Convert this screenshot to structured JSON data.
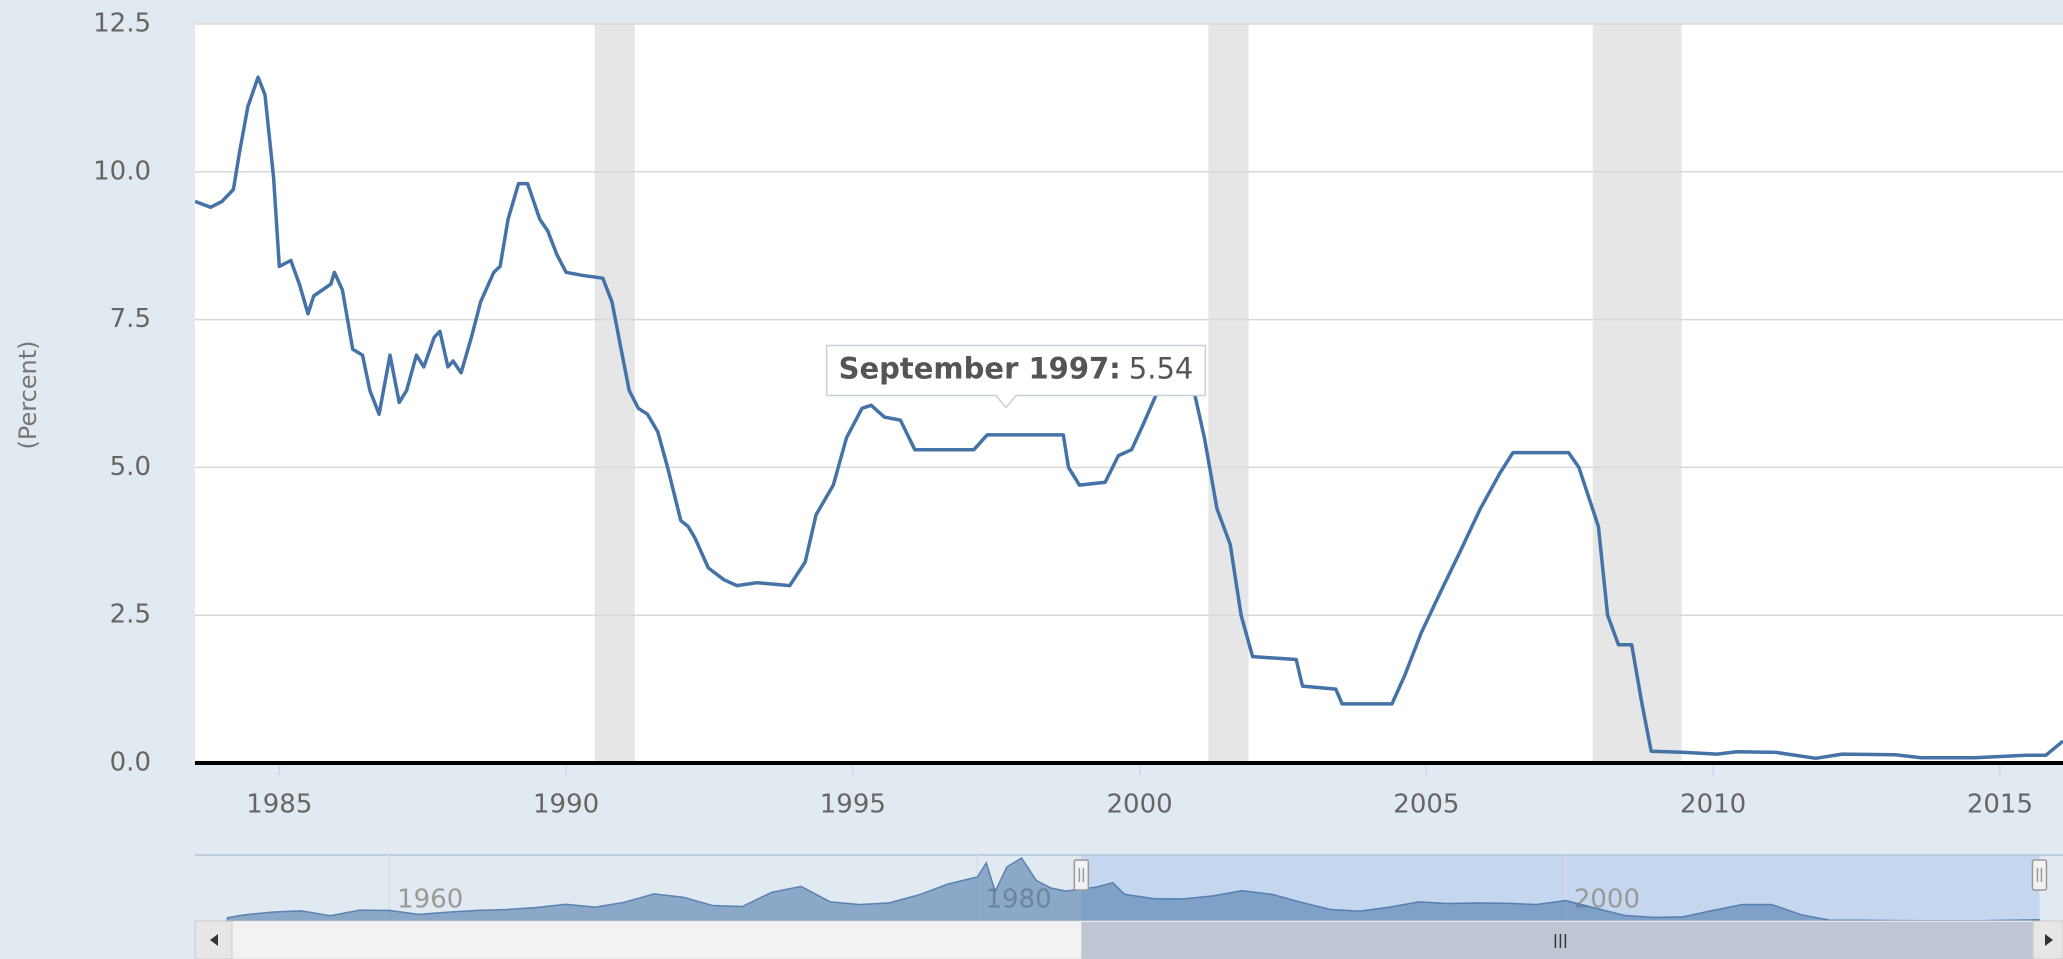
{
  "chart_data": {
    "type": "line",
    "y_axis_label": "(Percent)",
    "color": "#4572a7",
    "grid": true,
    "xlim": [
      1983.53,
      2016.1
    ],
    "ylim": [
      0,
      12.5
    ],
    "xticks": [
      1985,
      1990,
      1995,
      2000,
      2005,
      2010,
      2015
    ],
    "yticks": [
      {
        "value": 0,
        "label": "0.0"
      },
      {
        "value": 2.5,
        "label": "2.5"
      },
      {
        "value": 5,
        "label": "5.0"
      },
      {
        "value": 7.5,
        "label": "7.5"
      },
      {
        "value": 10,
        "label": "10.0"
      },
      {
        "value": 12.5,
        "label": "12.5"
      }
    ],
    "recessions": [
      [
        1990.5,
        1991.2
      ],
      [
        2001.2,
        2001.9
      ],
      [
        2007.9,
        2009.45
      ]
    ],
    "x": [
      1983.53,
      1983.8,
      1984.0,
      1984.2,
      1984.3,
      1984.45,
      1984.63,
      1984.75,
      1984.9,
      1985.0,
      1985.2,
      1985.35,
      1985.5,
      1985.6,
      1985.9,
      1985.96,
      1986.1,
      1986.28,
      1986.45,
      1986.58,
      1986.74,
      1986.93,
      1987.09,
      1987.22,
      1987.39,
      1987.52,
      1987.7,
      1987.8,
      1987.94,
      1988.03,
      1988.17,
      1988.35,
      1988.51,
      1988.74,
      1988.85,
      1988.99,
      1989.17,
      1989.33,
      1989.54,
      1989.68,
      1989.84,
      1990.0,
      1990.28,
      1990.64,
      1990.8,
      1990.96,
      1991.1,
      1991.26,
      1991.42,
      1991.6,
      1991.77,
      1992.0,
      1992.13,
      1992.25,
      1992.48,
      1992.75,
      1992.98,
      1993.33,
      1993.9,
      1994.17,
      1994.36,
      1994.66,
      1994.89,
      1995.16,
      1995.32,
      1995.55,
      1995.83,
      1996.08,
      1996.65,
      1997.11,
      1997.34,
      1998.26,
      1998.67,
      1998.76,
      1998.95,
      1999.4,
      1999.63,
      1999.86,
      2000.05,
      2000.32,
      2000.67,
      2000.9,
      2001.13,
      2001.35,
      2001.58,
      2001.77,
      2001.97,
      2002.73,
      2002.84,
      2003.42,
      2003.53,
      2004.4,
      2004.63,
      2004.91,
      2005.25,
      2005.6,
      2005.94,
      2006.28,
      2006.51,
      2007.48,
      2007.66,
      2008.0,
      2008.16,
      2008.35,
      2008.58,
      2008.76,
      2008.92,
      2009.5,
      2010.07,
      2010.41,
      2011.1,
      2011.79,
      2012.25,
      2013.17,
      2013.63,
      2014.55,
      2015.46,
      2015.8,
      2016.1
    ],
    "values": [
      9.5,
      9.4,
      9.5,
      9.7,
      10.3,
      11.1,
      11.6,
      11.3,
      9.9,
      8.4,
      8.5,
      8.1,
      7.6,
      7.9,
      8.1,
      8.3,
      8.0,
      7.0,
      6.9,
      6.3,
      5.9,
      6.9,
      6.1,
      6.3,
      6.9,
      6.7,
      7.2,
      7.3,
      6.7,
      6.8,
      6.6,
      7.2,
      7.8,
      8.3,
      8.4,
      9.2,
      9.8,
      9.8,
      9.2,
      9.0,
      8.6,
      8.3,
      8.25,
      8.2,
      7.8,
      7.0,
      6.3,
      6.0,
      5.9,
      5.6,
      5.0,
      4.1,
      4.0,
      3.8,
      3.3,
      3.1,
      3.0,
      3.05,
      3.0,
      3.4,
      4.2,
      4.7,
      5.5,
      6.0,
      6.05,
      5.85,
      5.8,
      5.3,
      5.3,
      5.3,
      5.55,
      5.55,
      5.55,
      5.0,
      4.7,
      4.75,
      5.2,
      5.3,
      5.7,
      6.3,
      6.5,
      6.5,
      5.5,
      4.3,
      3.7,
      2.5,
      1.8,
      1.75,
      1.3,
      1.25,
      1.0,
      1.0,
      1.5,
      2.2,
      2.9,
      3.6,
      4.3,
      4.9,
      5.25,
      5.25,
      5.0,
      4.0,
      2.5,
      2.0,
      2.0,
      1.0,
      0.2,
      0.18,
      0.15,
      0.19,
      0.18,
      0.08,
      0.15,
      0.14,
      0.09,
      0.09,
      0.13,
      0.13,
      0.37
    ],
    "tooltip": {
      "label": "September 1997:",
      "x": 1997.67,
      "value": 5.54
    },
    "navigator": {
      "xlim": [
        1953.4,
        2016.9
      ],
      "ylim": [
        0,
        20
      ],
      "xticks": [
        1960,
        1980,
        2000
      ],
      "x": [
        1954.5,
        1955,
        1956,
        1957,
        1958,
        1959,
        1960,
        1961,
        1962,
        1963,
        1964,
        1965,
        1966,
        1967,
        1968,
        1969,
        1970,
        1971,
        1972,
        1973,
        1974,
        1975,
        1976,
        1977,
        1978,
        1979,
        1980,
        1980.3,
        1980.6,
        1981,
        1981.5,
        1982,
        1982.5,
        1983,
        1984,
        1984.6,
        1985,
        1986,
        1987,
        1988,
        1989,
        1990,
        1991,
        1992,
        1993,
        1994,
        1995,
        1996,
        1997,
        1998,
        1999,
        2000,
        2001,
        2002,
        2003,
        2004,
        2005,
        2006,
        2007,
        2008,
        2009,
        2010,
        2012,
        2014,
        2016.1
      ],
      "values": [
        1.0,
        1.8,
        2.7,
        3.1,
        1.6,
        3.3,
        3.2,
        2.0,
        2.7,
        3.2,
        3.5,
        4.1,
        5.1,
        4.2,
        5.7,
        8.2,
        7.2,
        4.7,
        4.4,
        8.7,
        10.5,
        5.8,
        5.0,
        5.5,
        7.9,
        11.2,
        13.4,
        17.6,
        9.0,
        16.4,
        19.1,
        12.3,
        10.0,
        9.1,
        10.2,
        11.6,
        8.1,
        6.8,
        6.7,
        7.6,
        9.2,
        8.1,
        5.7,
        3.5,
        3.0,
        4.2,
        5.8,
        5.3,
        5.5,
        5.4,
        5.0,
        6.2,
        3.9,
        1.7,
        1.1,
        1.3,
        3.2,
        5.0,
        5.0,
        1.9,
        0.2,
        0.2,
        0.1,
        0.1,
        0.37
      ]
    }
  }
}
